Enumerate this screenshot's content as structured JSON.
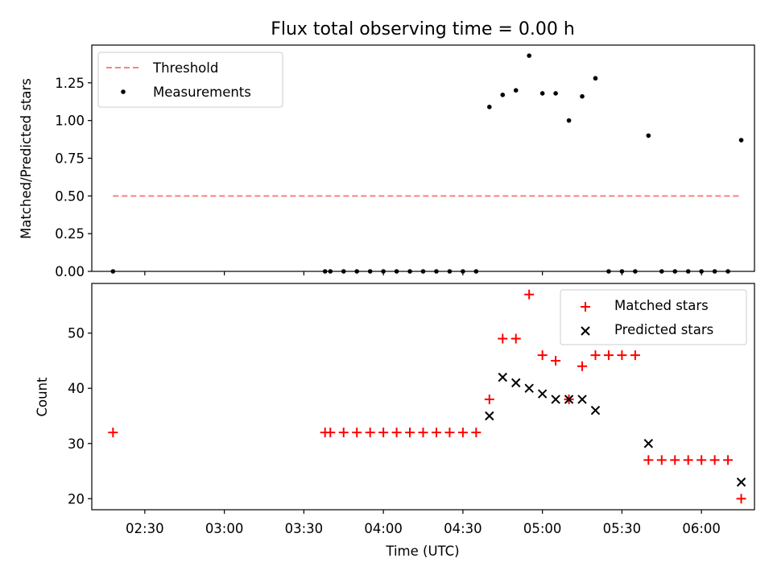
{
  "chart_data": [
    {
      "type": "scatter",
      "title": "Flux total observing time = 0.00 h",
      "xlabel": "",
      "ylabel": "Matched/Predicted stars",
      "ylim": [
        0.0,
        1.5
      ],
      "xlim": [
        "02:10",
        "06:20"
      ],
      "y_ticks": [
        {
          "v": 0.0,
          "label": "0.00"
        },
        {
          "v": 0.25,
          "label": "0.25"
        },
        {
          "v": 0.5,
          "label": "0.50"
        },
        {
          "v": 0.75,
          "label": "0.75"
        },
        {
          "v": 1.0,
          "label": "1.00"
        },
        {
          "v": 1.25,
          "label": "1.25"
        }
      ],
      "legend": {
        "placement": "top-left",
        "entries": [
          "Threshold",
          "Measurements"
        ]
      },
      "series": [
        {
          "name": "Threshold",
          "style": "dashed-line",
          "color": "#ff7f7f",
          "x": [
            "02:18",
            "06:15"
          ],
          "y": [
            0.5,
            0.5
          ]
        },
        {
          "name": "Measurements",
          "style": "dot",
          "color": "#000000",
          "x": [
            "02:18",
            "03:38",
            "03:40",
            "03:45",
            "03:50",
            "03:55",
            "04:00",
            "04:05",
            "04:10",
            "04:15",
            "04:20",
            "04:25",
            "04:30",
            "04:35",
            "04:40",
            "04:45",
            "04:50",
            "04:55",
            "05:00",
            "05:05",
            "05:10",
            "05:15",
            "05:20",
            "05:25",
            "05:30",
            "05:35",
            "05:40",
            "05:45",
            "05:50",
            "05:55",
            "06:00",
            "06:05",
            "06:10",
            "06:15"
          ],
          "y": [
            0,
            0,
            0,
            0,
            0,
            0,
            0,
            0,
            0,
            0,
            0,
            0,
            0,
            0,
            1.09,
            1.17,
            1.2,
            1.43,
            1.18,
            1.18,
            1.0,
            1.16,
            1.28,
            0,
            0,
            0,
            0.9,
            0,
            0,
            0,
            0,
            0,
            0,
            0.87
          ]
        }
      ]
    },
    {
      "type": "scatter",
      "title": "",
      "xlabel": "Time (UTC)",
      "ylabel": "Count",
      "ylim": [
        18,
        59
      ],
      "xlim": [
        "02:10",
        "06:20"
      ],
      "x_ticks": [
        "02:30",
        "03:00",
        "03:30",
        "04:00",
        "04:30",
        "05:00",
        "05:30",
        "06:00"
      ],
      "y_ticks": [
        20,
        30,
        40,
        50
      ],
      "legend": {
        "placement": "top-right",
        "entries": [
          "Matched stars",
          "Predicted stars"
        ]
      },
      "series": [
        {
          "name": "Matched stars",
          "style": "plus",
          "color": "#ff0000",
          "x": [
            "02:18",
            "03:38",
            "03:40",
            "03:45",
            "03:50",
            "03:55",
            "04:00",
            "04:05",
            "04:10",
            "04:15",
            "04:20",
            "04:25",
            "04:30",
            "04:35",
            "04:40",
            "04:45",
            "04:50",
            "04:55",
            "05:00",
            "05:05",
            "05:10",
            "05:15",
            "05:20",
            "05:25",
            "05:30",
            "05:35",
            "05:40",
            "05:45",
            "05:50",
            "05:55",
            "06:00",
            "06:05",
            "06:10",
            "06:15"
          ],
          "y": [
            32,
            32,
            32,
            32,
            32,
            32,
            32,
            32,
            32,
            32,
            32,
            32,
            32,
            32,
            38,
            49,
            49,
            57,
            46,
            45,
            38,
            44,
            46,
            46,
            46,
            46,
            27,
            27,
            27,
            27,
            27,
            27,
            27,
            20
          ]
        },
        {
          "name": "Predicted stars",
          "style": "x",
          "color": "#000000",
          "x": [
            "04:40",
            "04:45",
            "04:50",
            "04:55",
            "05:00",
            "05:05",
            "05:10",
            "05:15",
            "05:20",
            "05:40",
            "06:15"
          ],
          "y": [
            35,
            42,
            41,
            40,
            39,
            38,
            38,
            38,
            36,
            30,
            23
          ]
        }
      ]
    }
  ]
}
